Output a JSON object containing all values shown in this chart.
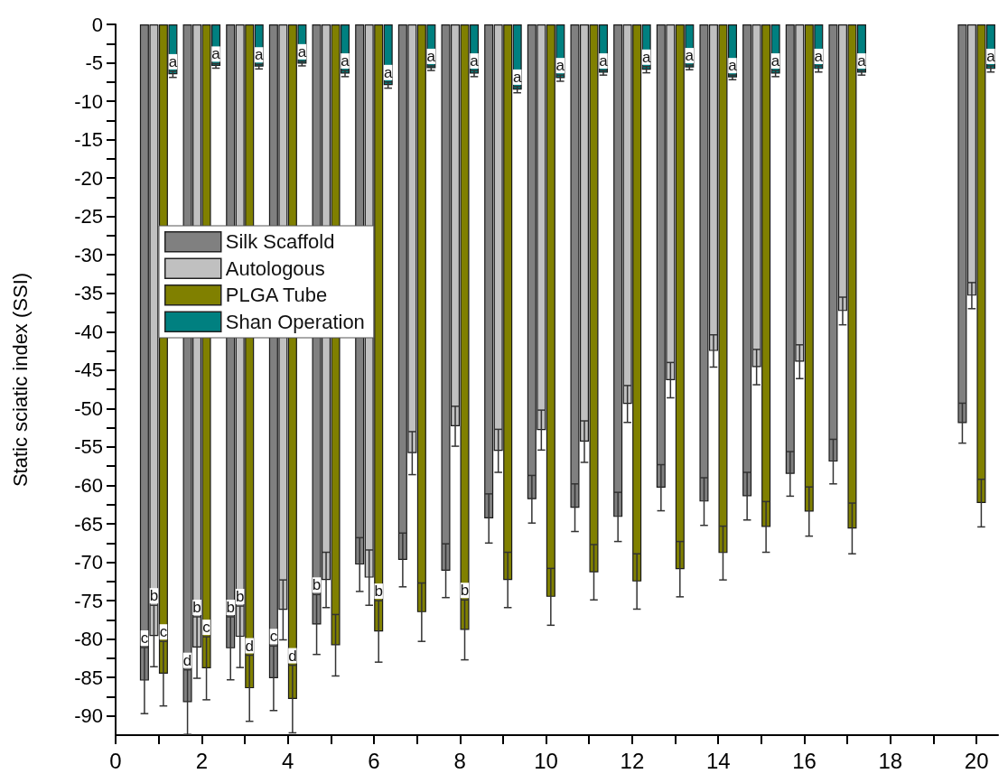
{
  "chart_data": {
    "type": "bar",
    "ylabel": "Static sciatic index (SSI)",
    "x": [
      1,
      2,
      3,
      4,
      5,
      6,
      7,
      8,
      9,
      10,
      11,
      12,
      13,
      14,
      15,
      16,
      17,
      20
    ],
    "xlim": [
      0,
      20.5
    ],
    "xticks": [
      0,
      {
        "value": 1,
        "label": null
      },
      2,
      {
        "value": 3,
        "label": null
      },
      4,
      {
        "value": 5,
        "label": null
      },
      6,
      {
        "value": 7,
        "label": null
      },
      8,
      {
        "value": 9,
        "label": null
      },
      10,
      {
        "value": 11,
        "label": null
      },
      12,
      {
        "value": 13,
        "label": null
      },
      14,
      {
        "value": 15,
        "label": null
      },
      16,
      {
        "value": 17,
        "label": null
      },
      18,
      {
        "value": 19,
        "label": null
      },
      20
    ],
    "ylim": [
      -92.5,
      0
    ],
    "yticks": [
      0,
      {
        "value": -2.5,
        "label": null
      },
      -5,
      {
        "value": -7.5,
        "label": null
      },
      -10,
      {
        "value": -12.5,
        "label": null
      },
      -15,
      {
        "value": -17.5,
        "label": null
      },
      -20,
      {
        "value": -22.5,
        "label": null
      },
      -25,
      {
        "value": -27.5,
        "label": null
      },
      -30,
      {
        "value": -32.5,
        "label": null
      },
      -35,
      {
        "value": -37.5,
        "label": null
      },
      -40,
      {
        "value": -42.5,
        "label": null
      },
      -45,
      {
        "value": -47.5,
        "label": null
      },
      -50,
      {
        "value": -52.5,
        "label": null
      },
      -55,
      {
        "value": -57.5,
        "label": null
      },
      -60,
      {
        "value": -62.5,
        "label": null
      },
      -65,
      {
        "value": -67.5,
        "label": null
      },
      -70,
      {
        "value": -72.5,
        "label": null
      },
      -75,
      {
        "value": -77.5,
        "label": null
      },
      -80,
      {
        "value": -82.5,
        "label": null
      },
      -85,
      {
        "value": -87.5,
        "label": null
      },
      -90
    ],
    "legend": "left",
    "grid": false,
    "series": [
      {
        "name": "Silk Scaffold",
        "color": "#808080",
        "values": [
          -85.4,
          -88.2,
          -81.2,
          -85.1,
          -78.1,
          -70.3,
          -69.7,
          -71.1,
          -64.3,
          -61.8,
          -62.9,
          -64.1,
          -60.3,
          -62.1,
          -61.4,
          -58.5,
          -56.9,
          -51.9
        ],
        "errors": [
          4.3,
          4.2,
          4.1,
          4.2,
          3.9,
          3.5,
          3.5,
          3.5,
          3.2,
          3.1,
          3.1,
          3.2,
          3.0,
          3.1,
          3.1,
          2.9,
          2.9,
          2.6
        ]
      },
      {
        "name": "Autologous",
        "color": "#c0c0c0",
        "values": [
          -79.6,
          -81.1,
          -79.7,
          -76.2,
          -72.3,
          -72.0,
          -55.8,
          -52.3,
          -55.5,
          -52.8,
          -54.3,
          -49.4,
          -46.3,
          -42.5,
          -44.6,
          -43.9,
          -37.3,
          -35.3
        ],
        "errors": [
          4.0,
          4.0,
          4.0,
          3.9,
          3.6,
          3.6,
          2.8,
          2.6,
          2.8,
          2.6,
          2.7,
          2.4,
          2.3,
          2.1,
          2.3,
          2.2,
          1.8,
          1.7
        ]
      },
      {
        "name": "PLGA Tube",
        "color": "#808000",
        "values": [
          -84.5,
          -83.8,
          -86.4,
          -87.8,
          -80.8,
          -79.0,
          -76.5,
          -78.8,
          -72.3,
          -74.5,
          -71.3,
          -72.5,
          -70.9,
          -68.8,
          -65.4,
          -63.4,
          -65.6,
          -62.3
        ],
        "errors": [
          4.2,
          4.1,
          4.3,
          4.4,
          4.0,
          4.0,
          3.8,
          3.9,
          3.6,
          3.7,
          3.6,
          3.6,
          3.6,
          3.5,
          3.3,
          3.2,
          3.3,
          3.1
        ]
      },
      {
        "name": "Shan Operation",
        "color": "#008080",
        "values": [
          -6.5,
          -5.4,
          -5.5,
          -5.1,
          -6.4,
          -7.9,
          -5.7,
          -6.4,
          -8.5,
          -7.0,
          -6.3,
          -5.9,
          -5.6,
          -6.9,
          -6.4,
          -5.8,
          -6.3,
          -5.8
        ],
        "errors": [
          0.4,
          0.3,
          0.3,
          0.3,
          0.4,
          0.4,
          0.3,
          0.4,
          0.4,
          0.4,
          0.3,
          0.4,
          0.3,
          0.3,
          0.4,
          0.4,
          0.3,
          0.4
        ]
      }
    ],
    "annotations": [
      {
        "text": "c",
        "x": 1,
        "y": -85.4
      },
      {
        "text": "b",
        "x": 1,
        "y": -79.6
      },
      {
        "text": "c",
        "x": 1,
        "y": -84.5
      },
      {
        "text": "d",
        "x": 2,
        "y": -88.2
      },
      {
        "text": "b",
        "x": 2,
        "y": -81.1
      },
      {
        "text": "c",
        "x": 2,
        "y": -83.8
      },
      {
        "text": "b",
        "x": 3,
        "y": -81.2
      },
      {
        "text": "b",
        "x": 3,
        "y": -79.7
      },
      {
        "text": "d",
        "x": 3,
        "y": -86.4
      },
      {
        "text": "c",
        "x": 4,
        "y": -85.1
      },
      {
        "text": "d",
        "x": 4,
        "y": -87.8
      },
      {
        "text": "b",
        "x": 5,
        "y": -78.1
      },
      {
        "text": "b",
        "x": 6,
        "y": -79.0
      },
      {
        "text": "b",
        "x": 8,
        "y": -78.8
      },
      {
        "text": "a",
        "x": 1,
        "y": -6.5
      },
      {
        "text": "a",
        "x": 2,
        "y": -5.4
      },
      {
        "text": "a",
        "x": 3,
        "y": -5.5
      },
      {
        "text": "a",
        "x": 4,
        "y": -5.1
      },
      {
        "text": "a",
        "x": 5,
        "y": -6.4
      },
      {
        "text": "a",
        "x": 6,
        "y": -7.9
      },
      {
        "text": "a",
        "x": 7,
        "y": -5.7
      },
      {
        "text": "a",
        "x": 8,
        "y": -6.4
      },
      {
        "text": "a",
        "x": 9,
        "y": -8.5
      },
      {
        "text": "a",
        "x": 10,
        "y": -7.0
      },
      {
        "text": "a",
        "x": 11,
        "y": -6.3
      },
      {
        "text": "a",
        "x": 12,
        "y": -5.9
      },
      {
        "text": "a",
        "x": 13,
        "y": -5.6
      },
      {
        "text": "a",
        "x": 14,
        "y": -6.9
      },
      {
        "text": "a",
        "x": 15,
        "y": -6.4
      },
      {
        "text": "a",
        "x": 16,
        "y": -5.8
      },
      {
        "text": "a",
        "x": 17,
        "y": -6.3
      },
      {
        "text": "a",
        "x": 20,
        "y": -5.8
      }
    ]
  }
}
